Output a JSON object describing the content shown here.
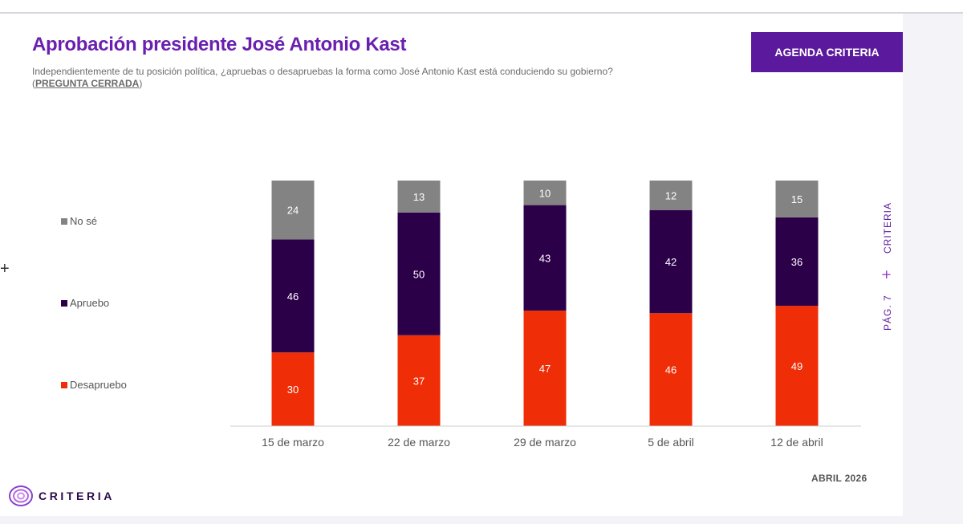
{
  "header": {
    "title": "Aprobación presidente José Antonio Kast",
    "subtitle_main": "Independientemente de tu posición política, ¿apruebas o desapruebas la forma como José Antonio Kast está conduciendo su gobierno? (",
    "subtitle_closed": "PREGUNTA CERRADA",
    "subtitle_end": ")",
    "agenda_button": "AGENDA CRITERIA"
  },
  "side": {
    "brand": "CRITERIA",
    "page": "PÁG. 7",
    "plus": "+"
  },
  "footer": {
    "date": "ABRIL 2026",
    "logo_text": "CRITERIA"
  },
  "colors": {
    "no_se": "#838383",
    "apruebo": "#2c0049",
    "desapruebo": "#ef2d06",
    "accent": "#6a1fb0"
  },
  "chart_data": {
    "type": "bar",
    "stacked": true,
    "title": "Aprobación presidente José Antonio Kast",
    "categories": [
      "15 de marzo",
      "22 de marzo",
      "29 de marzo",
      "5 de abril",
      "12 de abril"
    ],
    "series": [
      {
        "name": "Desapruebo",
        "color": "#ef2d06",
        "values": [
          30,
          37,
          47,
          46,
          49
        ]
      },
      {
        "name": "Apruebo",
        "color": "#2c0049",
        "values": [
          46,
          50,
          43,
          42,
          36
        ]
      },
      {
        "name": "No sé",
        "color": "#838383",
        "values": [
          24,
          13,
          10,
          12,
          15
        ]
      }
    ],
    "legend": [
      "No sé",
      "Apruebo",
      "Desapruebo"
    ],
    "legend_position": "left",
    "ylim": [
      0,
      100
    ]
  }
}
